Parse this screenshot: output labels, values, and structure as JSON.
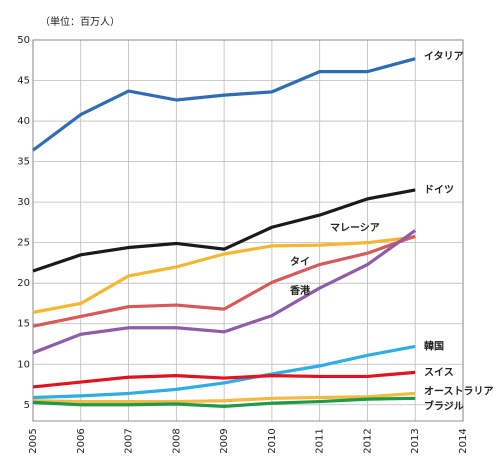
{
  "chart_data": {
    "type": "line",
    "unit_label": "（単位：百万人）",
    "x": [
      2005,
      2006,
      2007,
      2008,
      2009,
      2010,
      2011,
      2012,
      2013
    ],
    "xlim": [
      2005,
      2014
    ],
    "xticks": [
      2005,
      2006,
      2007,
      2008,
      2009,
      2010,
      2011,
      2012,
      2013,
      2014
    ],
    "ylim": [
      3,
      50
    ],
    "yticks": [
      5,
      10,
      15,
      20,
      25,
      30,
      35,
      40,
      45,
      50
    ],
    "grid": true,
    "series": [
      {
        "name": "イタリア",
        "color": "#2e6db4",
        "values": [
          36.4,
          40.8,
          43.7,
          42.6,
          43.2,
          43.6,
          46.1,
          46.1,
          47.7
        ]
      },
      {
        "name": "ドイツ",
        "color": "#1a1a1a",
        "values": [
          21.5,
          23.5,
          24.4,
          24.9,
          24.2,
          26.9,
          28.4,
          30.4,
          31.5
        ]
      },
      {
        "name": "マレーシア",
        "color": "#f5b731",
        "values": [
          16.4,
          17.5,
          20.9,
          22.0,
          23.6,
          24.6,
          24.7,
          25.0,
          25.7
        ]
      },
      {
        "name": "タイ",
        "color": "#d65a5a",
        "values": [
          14.7,
          15.9,
          17.1,
          17.3,
          16.8,
          20.1,
          22.3,
          23.7,
          25.8
        ]
      },
      {
        "name": "香港",
        "color": "#8e5ca8",
        "values": [
          11.4,
          13.7,
          14.5,
          14.5,
          14.0,
          16.0,
          19.4,
          22.3,
          26.5
        ]
      },
      {
        "name": "韓国",
        "color": "#2eaee3",
        "values": [
          5.9,
          6.1,
          6.4,
          6.9,
          7.7,
          8.8,
          9.8,
          11.1,
          12.2
        ]
      },
      {
        "name": "スイス",
        "color": "#e0141e",
        "values": [
          7.2,
          7.8,
          8.4,
          8.6,
          8.3,
          8.6,
          8.5,
          8.5,
          9.0
        ]
      },
      {
        "name": "オーストラリア",
        "color": "#f4b942",
        "values": [
          5.5,
          5.4,
          5.4,
          5.4,
          5.5,
          5.8,
          5.9,
          6.0,
          6.4
        ]
      },
      {
        "name": "ブラジル",
        "color": "#1f9a48",
        "values": [
          5.3,
          5.0,
          5.0,
          5.1,
          4.8,
          5.2,
          5.4,
          5.7,
          5.8
        ]
      }
    ]
  }
}
